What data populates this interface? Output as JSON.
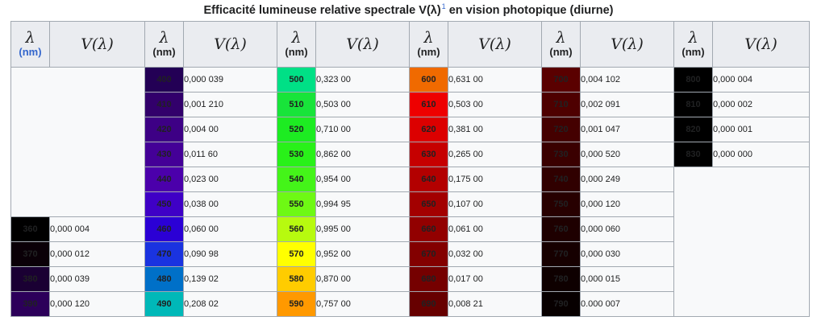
{
  "caption": {
    "text": "Efficacité lumineuse relative spectrale V(λ)",
    "ref": "1",
    "suffix": "en vision photopique (diurne)"
  },
  "header": {
    "lambda_symbol": "λ",
    "unit": "(nm)",
    "v_symbol": "V(λ)"
  },
  "columns": [
    {
      "start_row": 6,
      "rows": [
        {
          "nm": "360",
          "v": "0,000 004",
          "color": "#000000"
        },
        {
          "nm": "370",
          "v": "0,000 012",
          "color": "#0a0007"
        },
        {
          "nm": "380",
          "v": "0,000 039",
          "color": "#1a0033"
        },
        {
          "nm": "390",
          "v": "0,000 120",
          "color": "#2c005a"
        }
      ]
    },
    {
      "start_row": 0,
      "rows": [
        {
          "nm": "400",
          "v": "0,000 039",
          "color": "#230055"
        },
        {
          "nm": "410",
          "v": "0,001 210",
          "color": "#32006b"
        },
        {
          "nm": "420",
          "v": "0,004 00",
          "color": "#3d0085"
        },
        {
          "nm": "430",
          "v": "0,011 60",
          "color": "#440097"
        },
        {
          "nm": "440",
          "v": "0,023 00",
          "color": "#4b00ab"
        },
        {
          "nm": "450",
          "v": "0,038 00",
          "color": "#3f00c6"
        },
        {
          "nm": "460",
          "v": "0,060 00",
          "color": "#2b00d5"
        },
        {
          "nm": "470",
          "v": "0,090 98",
          "color": "#1a33e0"
        },
        {
          "nm": "480",
          "v": "0,139 02",
          "color": "#0070c8"
        },
        {
          "nm": "490",
          "v": "0,208 02",
          "color": "#00b8b8",
          "dark": true
        }
      ]
    },
    {
      "start_row": 0,
      "rows": [
        {
          "nm": "500",
          "v": "0,323 00",
          "color": "#00e086",
          "dark": true
        },
        {
          "nm": "510",
          "v": "0,503 00",
          "color": "#18e43a",
          "dark": true
        },
        {
          "nm": "520",
          "v": "0,710 00",
          "color": "#1dec22",
          "dark": true
        },
        {
          "nm": "530",
          "v": "0,862 00",
          "color": "#29f119",
          "dark": true
        },
        {
          "nm": "540",
          "v": "0,954 00",
          "color": "#44f419",
          "dark": true
        },
        {
          "nm": "550",
          "v": "0,994 95",
          "color": "#6ef914",
          "dark": true
        },
        {
          "nm": "560",
          "v": "0,995 00",
          "color": "#b7fa0f",
          "dark": true
        },
        {
          "nm": "570",
          "v": "0,952 00",
          "color": "#ffff00",
          "dark": true
        },
        {
          "nm": "580",
          "v": "0,870 00",
          "color": "#ffcc00",
          "dark": true
        },
        {
          "nm": "590",
          "v": "0,757 00",
          "color": "#ff9900",
          "dark": true
        }
      ]
    },
    {
      "start_row": 0,
      "rows": [
        {
          "nm": "600",
          "v": "0,631 00",
          "color": "#f06a00",
          "dark": true
        },
        {
          "nm": "610",
          "v": "0,503 00",
          "color": "#ee0000",
          "dark": true
        },
        {
          "nm": "620",
          "v": "0,381 00",
          "color": "#dc0000"
        },
        {
          "nm": "630",
          "v": "0,265 00",
          "color": "#c60000"
        },
        {
          "nm": "640",
          "v": "0,175 00",
          "color": "#b30000"
        },
        {
          "nm": "650",
          "v": "0,107 00",
          "color": "#a30000"
        },
        {
          "nm": "660",
          "v": "0,061 00",
          "color": "#920000"
        },
        {
          "nm": "670",
          "v": "0,032 00",
          "color": "#830000"
        },
        {
          "nm": "680",
          "v": "0,017 00",
          "color": "#750000"
        },
        {
          "nm": "690",
          "v": "0,008 21",
          "color": "#670000"
        }
      ]
    },
    {
      "start_row": 0,
      "rows": [
        {
          "nm": "700",
          "v": "0,004 102",
          "color": "#5a0000"
        },
        {
          "nm": "710",
          "v": "0,002 091",
          "color": "#4e0000"
        },
        {
          "nm": "720",
          "v": "0,001 047",
          "color": "#440000"
        },
        {
          "nm": "730",
          "v": "0,000 520",
          "color": "#3a0000"
        },
        {
          "nm": "740",
          "v": "0,000 249",
          "color": "#300000"
        },
        {
          "nm": "750",
          "v": "0,000 120",
          "color": "#270000"
        },
        {
          "nm": "760",
          "v": "0,000 060",
          "color": "#1e0000"
        },
        {
          "nm": "770",
          "v": "0,000 030",
          "color": "#160000"
        },
        {
          "nm": "780",
          "v": "0,000 015",
          "color": "#0e0000"
        },
        {
          "nm": "790",
          "v": "0.000 007",
          "color": "#070000"
        }
      ]
    },
    {
      "start_row": 0,
      "rows": [
        {
          "nm": "800",
          "v": "0,000 004",
          "color": "#000000"
        },
        {
          "nm": "810",
          "v": "0,000 002",
          "color": "#000000"
        },
        {
          "nm": "820",
          "v": "0,000 001",
          "color": "#000000"
        },
        {
          "nm": "830",
          "v": "0,000 000",
          "color": "#000000"
        }
      ]
    }
  ]
}
